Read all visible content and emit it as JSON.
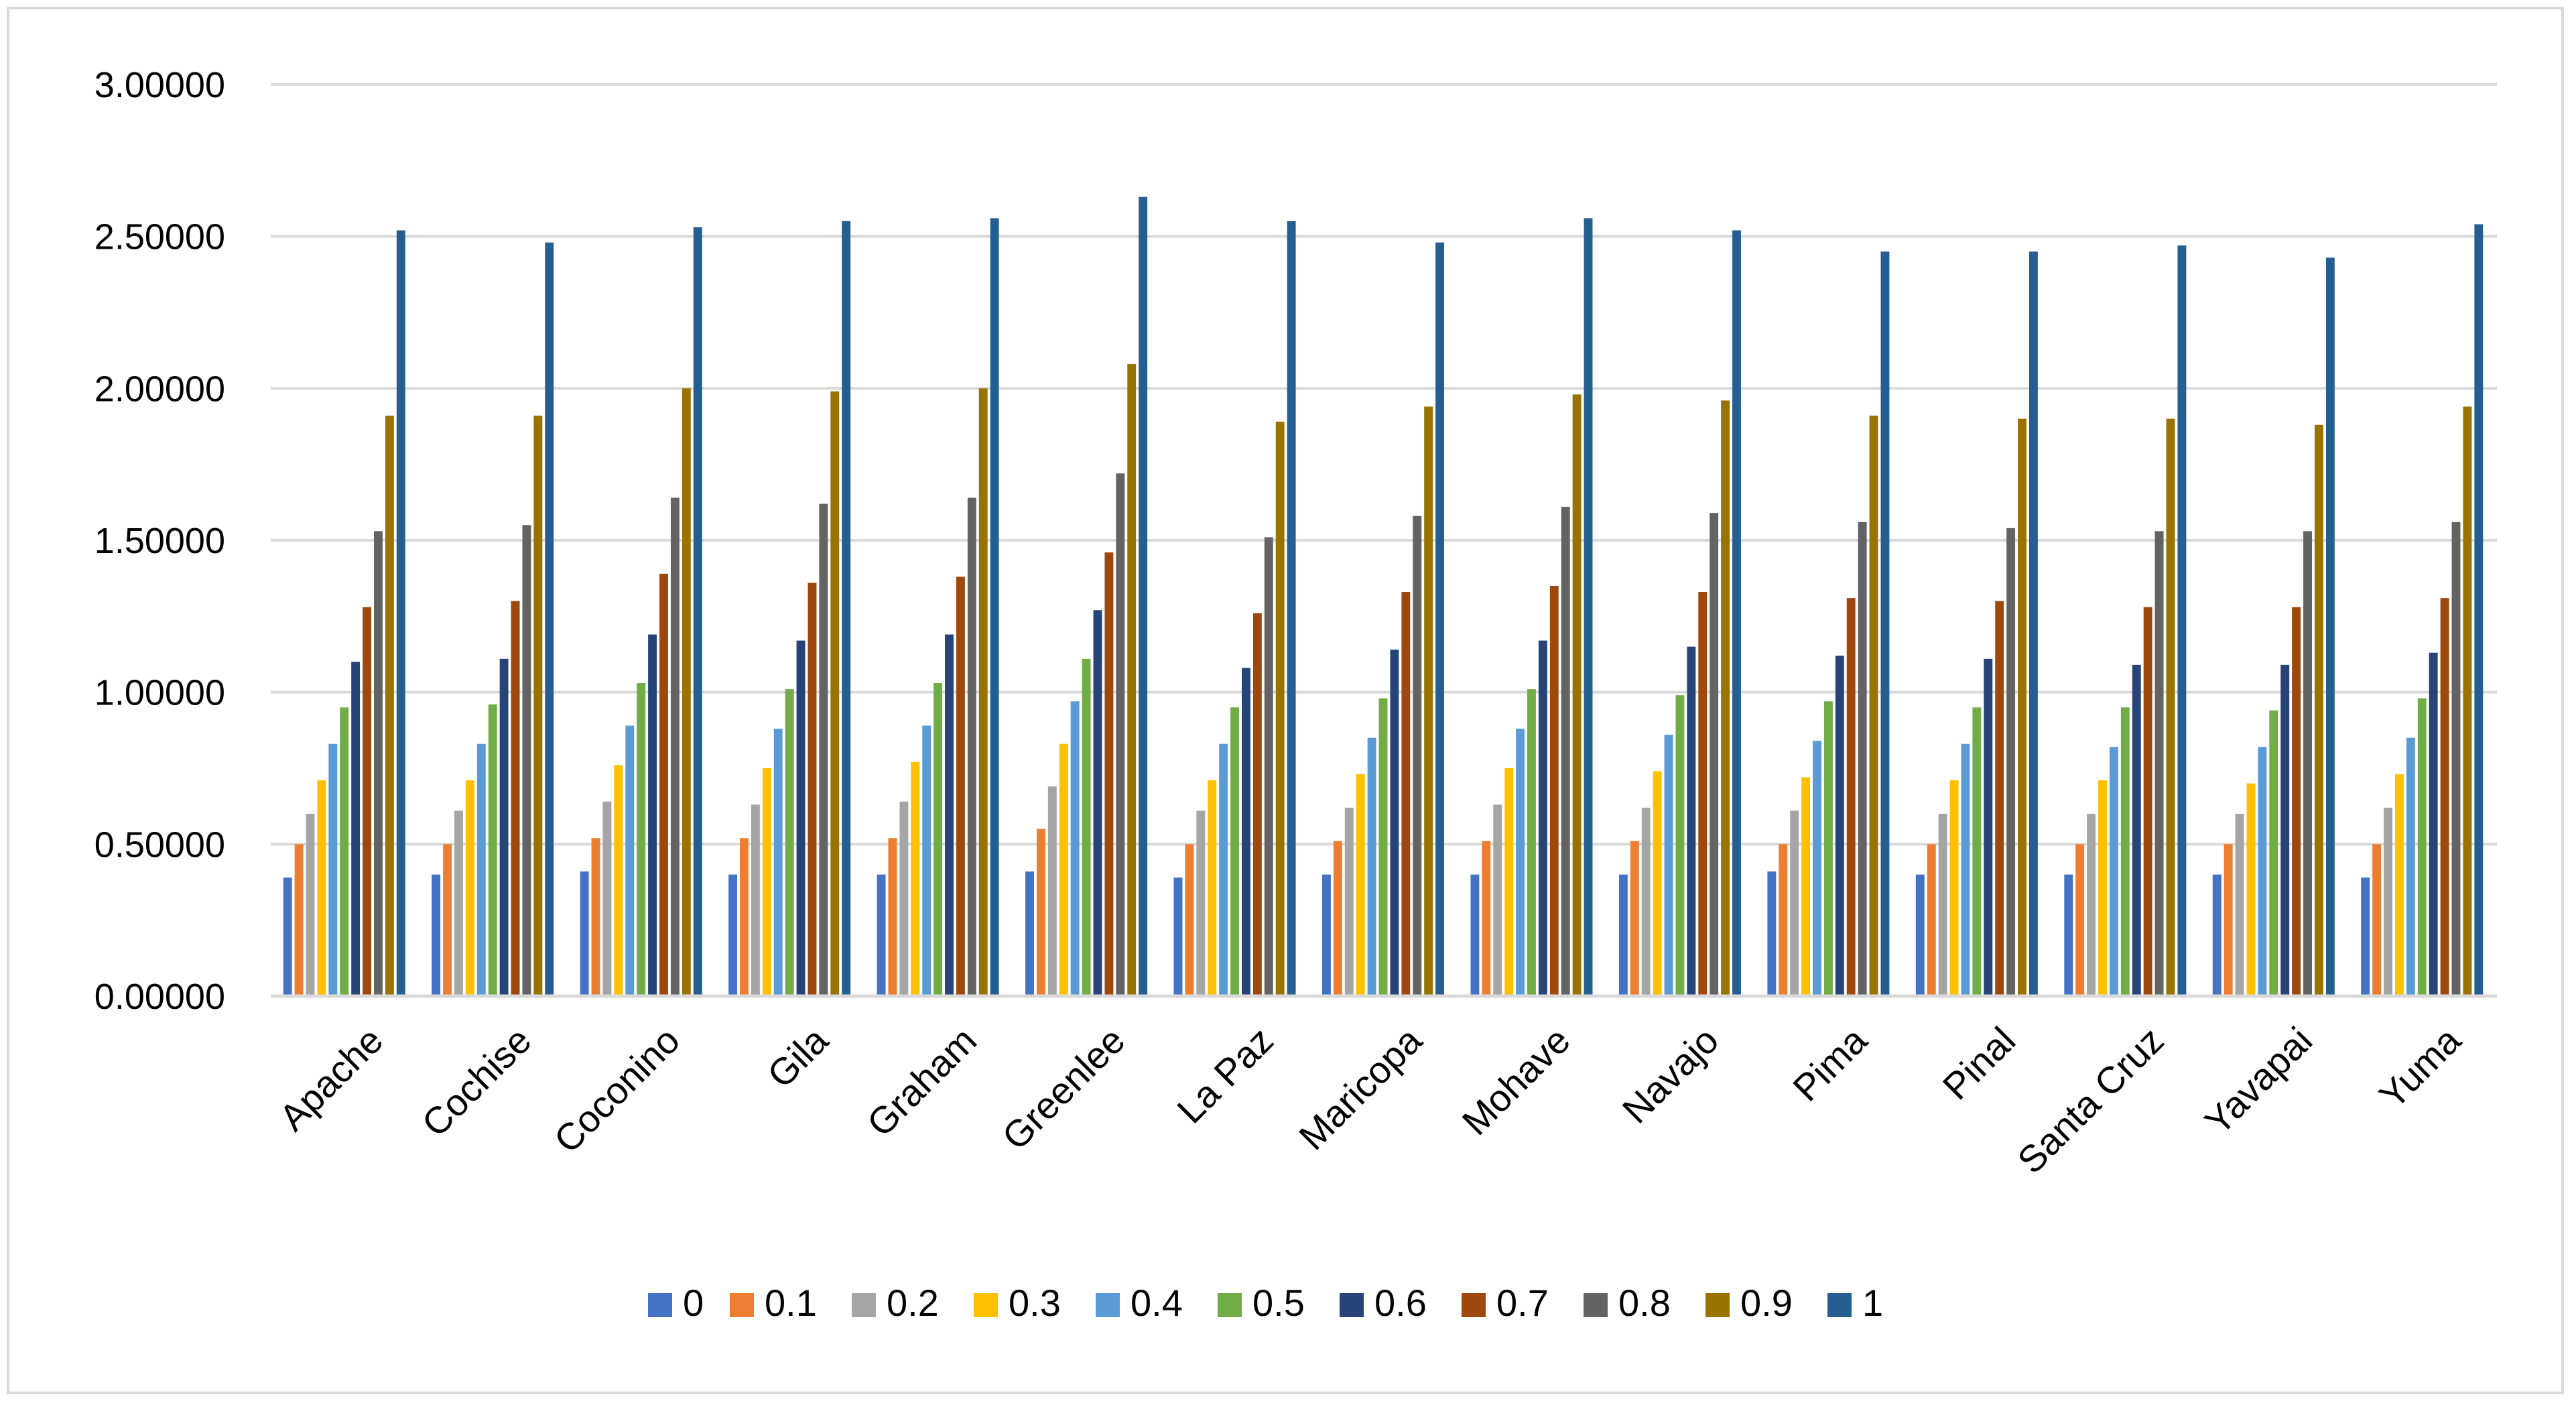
{
  "chart_data": {
    "type": "bar",
    "title": "",
    "xlabel": "",
    "ylabel": "",
    "ylim": [
      0,
      3
    ],
    "y_ticks": [
      "0.00000",
      "0.50000",
      "1.00000",
      "1.50000",
      "2.00000",
      "2.50000",
      "3.00000"
    ],
    "grid": true,
    "legend_position": "bottom",
    "categories": [
      "Apache",
      "Cochise",
      "Coconino",
      "Gila",
      "Graham",
      "Greenlee",
      "La Paz",
      "Maricopa",
      "Mohave",
      "Navajo",
      "Pima",
      "Pinal",
      "Santa Cruz",
      "Yavapai",
      "Yuma"
    ],
    "series": [
      {
        "name": "0",
        "color": "#4472c4",
        "values": [
          0.39,
          0.4,
          0.41,
          0.4,
          0.4,
          0.41,
          0.39,
          0.4,
          0.4,
          0.4,
          0.41,
          0.4,
          0.4,
          0.4,
          0.39
        ]
      },
      {
        "name": "0.1",
        "color": "#ed7d31",
        "values": [
          0.5,
          0.5,
          0.52,
          0.52,
          0.52,
          0.55,
          0.5,
          0.51,
          0.51,
          0.51,
          0.5,
          0.5,
          0.5,
          0.5,
          0.5
        ]
      },
      {
        "name": "0.2",
        "color": "#a5a5a5",
        "values": [
          0.6,
          0.61,
          0.64,
          0.63,
          0.64,
          0.69,
          0.61,
          0.62,
          0.63,
          0.62,
          0.61,
          0.6,
          0.6,
          0.6,
          0.62
        ]
      },
      {
        "name": "0.3",
        "color": "#ffc000",
        "values": [
          0.71,
          0.71,
          0.76,
          0.75,
          0.77,
          0.83,
          0.71,
          0.73,
          0.75,
          0.74,
          0.72,
          0.71,
          0.71,
          0.7,
          0.73
        ]
      },
      {
        "name": "0.4",
        "color": "#5b9bd5",
        "values": [
          0.83,
          0.83,
          0.89,
          0.88,
          0.89,
          0.97,
          0.83,
          0.85,
          0.88,
          0.86,
          0.84,
          0.83,
          0.82,
          0.82,
          0.85
        ]
      },
      {
        "name": "0.5",
        "color": "#70ad47",
        "values": [
          0.95,
          0.96,
          1.03,
          1.01,
          1.03,
          1.11,
          0.95,
          0.98,
          1.01,
          0.99,
          0.97,
          0.95,
          0.95,
          0.94,
          0.98
        ]
      },
      {
        "name": "0.6",
        "color": "#264478",
        "values": [
          1.1,
          1.11,
          1.19,
          1.17,
          1.19,
          1.27,
          1.08,
          1.14,
          1.17,
          1.15,
          1.12,
          1.11,
          1.09,
          1.09,
          1.13
        ]
      },
      {
        "name": "0.7",
        "color": "#9e480e",
        "values": [
          1.28,
          1.3,
          1.39,
          1.36,
          1.38,
          1.46,
          1.26,
          1.33,
          1.35,
          1.33,
          1.31,
          1.3,
          1.28,
          1.28,
          1.31
        ]
      },
      {
        "name": "0.8",
        "color": "#636363",
        "values": [
          1.53,
          1.55,
          1.64,
          1.62,
          1.64,
          1.72,
          1.51,
          1.58,
          1.61,
          1.59,
          1.56,
          1.54,
          1.53,
          1.53,
          1.56
        ]
      },
      {
        "name": "0.9",
        "color": "#997300",
        "values": [
          1.91,
          1.91,
          2.0,
          1.99,
          2.0,
          2.08,
          1.89,
          1.94,
          1.98,
          1.96,
          1.91,
          1.9,
          1.9,
          1.88,
          1.94
        ]
      },
      {
        "name": "1",
        "color": "#255e91",
        "values": [
          2.52,
          2.48,
          2.53,
          2.55,
          2.56,
          2.63,
          2.55,
          2.48,
          2.56,
          2.52,
          2.45,
          2.45,
          2.47,
          2.43,
          2.54
        ]
      }
    ]
  }
}
